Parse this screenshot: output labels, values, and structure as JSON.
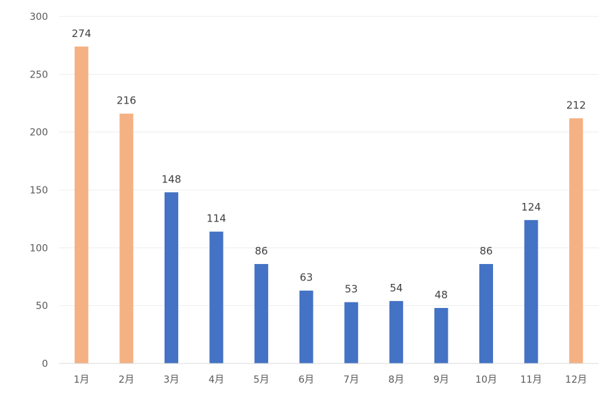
{
  "chart_data": {
    "type": "bar",
    "categories": [
      "1月",
      "2月",
      "3月",
      "4月",
      "5月",
      "6月",
      "7月",
      "8月",
      "9月",
      "10月",
      "11月",
      "12月"
    ],
    "values": [
      274,
      216,
      148,
      114,
      86,
      63,
      53,
      54,
      48,
      86,
      124,
      212
    ],
    "title": "",
    "xlabel": "",
    "ylabel": "",
    "ylim": [
      0,
      300
    ],
    "yticks": [
      0,
      50,
      100,
      150,
      200,
      250,
      300
    ],
    "grid": true,
    "legend": "none",
    "highlight_indices": [
      0,
      1,
      11
    ],
    "colors": {
      "highlight": "#F4B183",
      "normal": "#4472C4",
      "grid": "#EDEDED",
      "axis": "#D9D9D9",
      "text": "#595959"
    }
  }
}
